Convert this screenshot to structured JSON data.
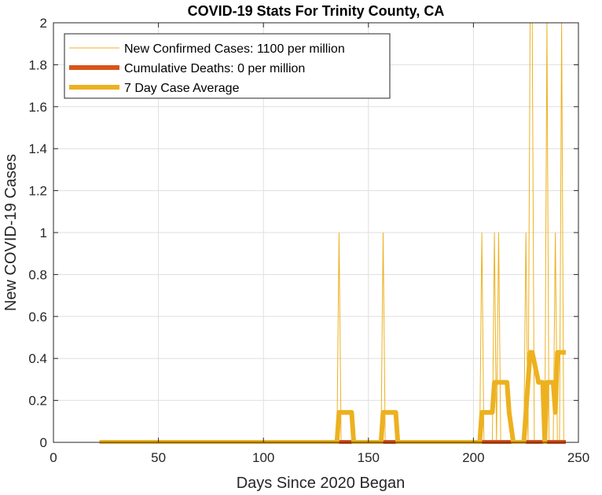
{
  "chart_data": {
    "type": "line",
    "title": "COVID-19 Stats For Trinity County, CA",
    "xlabel": "Days Since 2020 Began",
    "ylabel": "New COVID-19 Cases",
    "xlim": [
      0,
      250
    ],
    "ylim": [
      0,
      2
    ],
    "xticks": [
      "0",
      "50",
      "100",
      "150",
      "200",
      "250"
    ],
    "yticks": [
      "0",
      "0.2",
      "0.4",
      "0.6",
      "0.8",
      "1",
      "1.2",
      "1.4",
      "1.6",
      "1.8",
      "2"
    ],
    "grid": true,
    "legend_position": "top-left",
    "series": [
      {
        "name": "New Confirmed Cases: 1100 per million",
        "color": "#EDB120",
        "x_range": [
          22,
          244
        ],
        "spikes": [
          {
            "x": 136,
            "y": 1
          },
          {
            "x": 157,
            "y": 1
          },
          {
            "x": 204,
            "y": 1
          },
          {
            "x": 210,
            "y": 1
          },
          {
            "x": 212,
            "y": 1
          },
          {
            "x": 225,
            "y": 1
          },
          {
            "x": 227,
            "y": 2
          },
          {
            "x": 228,
            "y": 2
          },
          {
            "x": 235,
            "y": 2
          },
          {
            "x": 239,
            "y": 1
          },
          {
            "x": 242,
            "y": 2
          }
        ]
      },
      {
        "name": "Cumulative Deaths: 0 per million",
        "color": "#D95319",
        "x": [
          22,
          244
        ],
        "values": [
          0,
          0
        ]
      },
      {
        "name": "7 Day Case Average",
        "color": "#EDB120",
        "x": [
          22,
          135,
          136,
          142,
          143,
          156,
          157,
          163,
          164,
          203,
          204,
          209,
          210,
          211,
          212,
          216,
          217,
          219,
          224,
          225,
          226,
          227,
          228,
          231,
          232,
          233,
          234,
          235,
          236,
          238,
          239,
          240,
          241,
          242,
          244
        ],
        "values": [
          0,
          0,
          0.143,
          0.143,
          0,
          0,
          0.143,
          0.143,
          0,
          0,
          0.143,
          0.143,
          0.286,
          0.286,
          0.286,
          0.286,
          0.143,
          0,
          0,
          0.143,
          0.286,
          0.429,
          0.429,
          0.286,
          0.286,
          0.286,
          0,
          0.286,
          0.286,
          0.286,
          0.143,
          0.429,
          0.429,
          0.429,
          0.429
        ]
      }
    ]
  }
}
